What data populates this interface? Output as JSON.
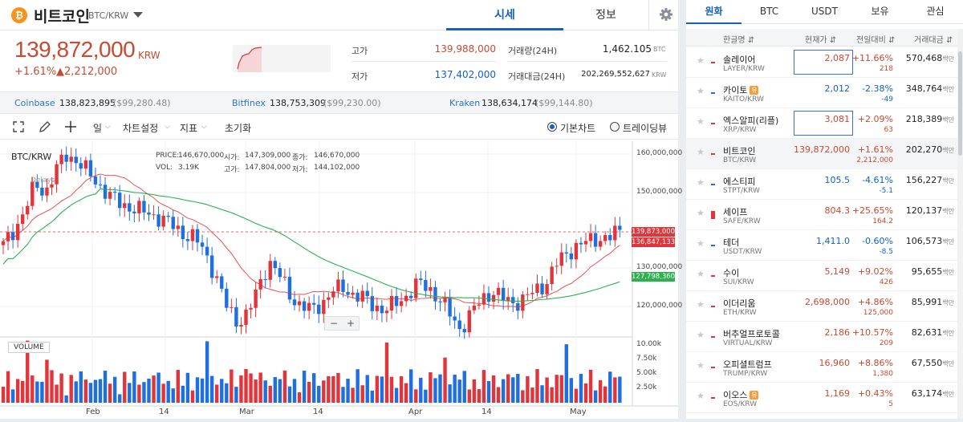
{
  "header": {
    "coin_symbol": "₿",
    "coin_name": "비트코인",
    "pair": "BTC/KRW",
    "tabs": [
      "시세",
      "정보"
    ]
  },
  "price": {
    "value": "139,872,000",
    "unit": "KRW",
    "change_rate": "+1.61%",
    "change_amount": "▲2,212,000",
    "high_label": "고가",
    "high": "139,988,000",
    "low_label": "저가",
    "low": "137,402,000",
    "volume_label": "거래량(24H)",
    "volume": "1,462.105",
    "volume_unit": "BTC",
    "amount_label": "거래대금(24H)",
    "amount": "202,269,552,627",
    "amount_unit": "KRW"
  },
  "exchanges": [
    {
      "name": "Coinbase",
      "value": "138,823,895",
      "usd": "($99,280.48)"
    },
    {
      "name": "Bitfinex",
      "value": "138,753,309",
      "usd": "($99,230.00)"
    },
    {
      "name": "Kraken",
      "value": "138,634,174",
      "usd": "($99,144.80)"
    }
  ],
  "toolbar": {
    "interval": "일",
    "chart_settings": "차트설정",
    "indicators": "지표",
    "reset": "초기화",
    "basic_chart": "기본차트",
    "tradingview": "트레이딩뷰"
  },
  "chart": {
    "symbol": "BTC/KRW",
    "overlay_label": "Delays",
    "ohlc": {
      "price_label": "PRICE:",
      "price": "146,670,000",
      "vol_label": "VOL:",
      "vol": "3.19K",
      "open_label": "시가:",
      "open": "147,309,000",
      "high_label": "고가:",
      "high": "147,804,000",
      "close_label": "종가:",
      "close": "146,670,000",
      "low_label": "저가:",
      "low": "144,102,000"
    },
    "volume_label": "VOLUME",
    "zoom_out": "−",
    "zoom_in": "+",
    "price_ticks": [
      "160,000,000",
      "150,000,000",
      "130,000,000",
      "120,000,000"
    ],
    "volume_ticks": [
      "10.00k",
      "7.50k",
      "5.00k",
      "2.50k"
    ],
    "x_ticks": [
      "Feb",
      "14",
      "Mar",
      "14",
      "Apr",
      "14",
      "May",
      "14"
    ],
    "price_badges": [
      {
        "value": "139,873,000",
        "color": "#e0353a"
      },
      {
        "value": "136,847,133",
        "color": "#e0353a"
      },
      {
        "value": "127,798,360",
        "color": "#2bb24c"
      }
    ],
    "colors": {
      "up": "#e0353a",
      "down": "#1e6fe0",
      "ma_short": "#e0353a",
      "ma_long": "#2bb24c"
    }
  },
  "chart_data": {
    "type": "candlestick",
    "x_range": [
      "Jan",
      "May"
    ],
    "y_range": [
      110000000,
      165000000
    ],
    "series": [
      {
        "name": "price",
        "values": [
          136,
          140,
          145,
          152,
          150,
          156,
          160,
          158,
          155,
          152,
          149,
          147,
          146,
          145,
          144,
          143,
          141,
          139,
          138,
          134,
          128,
          120,
          116,
          118,
          125,
          132,
          128,
          123,
          120,
          119,
          121,
          124,
          125,
          123,
          122,
          120,
          119,
          121,
          123,
          126,
          125,
          122,
          118,
          114,
          118,
          122,
          124,
          122,
          121,
          122,
          124,
          126,
          131,
          134,
          136,
          137,
          138,
          138,
          139.9
        ]
      }
    ]
  },
  "market": {
    "tabs": [
      "원화",
      "BTC",
      "USDT",
      "보유",
      "관심"
    ],
    "headers": {
      "name": "한글명 ⇵",
      "price": "현재가 ⇵",
      "change": "전일대비 ⇵",
      "volume": "거래대금 ⇵"
    },
    "volume_unit": "백만",
    "rows": [
      {
        "name": "솔레이어",
        "pair": "LAYER/KRW",
        "price": "2,087",
        "rate": "+11.66%",
        "amount": "218",
        "volume": "570,468",
        "dir": "up",
        "boxed": true,
        "badge": ""
      },
      {
        "name": "카이토",
        "pair": "KAITO/KRW",
        "price": "2,012",
        "rate": "-2.38%",
        "amount": "-49",
        "volume": "348,764",
        "dir": "dn",
        "boxed": false,
        "badge": "유"
      },
      {
        "name": "엑스알피(리플)",
        "pair": "XRP/KRW",
        "price": "3,081",
        "rate": "+2.09%",
        "amount": "63",
        "volume": "218,389",
        "dir": "up",
        "boxed": true,
        "badge": ""
      },
      {
        "name": "비트코인",
        "pair": "BTC/KRW",
        "price": "139,872,000",
        "rate": "+1.61%",
        "amount": "2,212,000",
        "volume": "202,270",
        "dir": "up",
        "boxed": false,
        "badge": "",
        "selected": true
      },
      {
        "name": "에스티피",
        "pair": "STPT/KRW",
        "price": "105.5",
        "rate": "-4.61%",
        "amount": "-5.1",
        "volume": "156,227",
        "dir": "dn",
        "boxed": false,
        "badge": ""
      },
      {
        "name": "세이프",
        "pair": "SAFE/KRW",
        "price": "804.3",
        "rate": "+25.65%",
        "amount": "164.2",
        "volume": "120,137",
        "dir": "up",
        "boxed": false,
        "badge": ""
      },
      {
        "name": "테더",
        "pair": "USDT/KRW",
        "price": "1,411.0",
        "rate": "-0.60%",
        "amount": "-8.5",
        "volume": "106,573",
        "dir": "dn",
        "boxed": false,
        "badge": ""
      },
      {
        "name": "수이",
        "pair": "SUI/KRW",
        "price": "5,149",
        "rate": "+9.02%",
        "amount": "426",
        "volume": "95,655",
        "dir": "up",
        "boxed": false,
        "badge": ""
      },
      {
        "name": "이더리움",
        "pair": "ETH/KRW",
        "price": "2,698,000",
        "rate": "+4.86%",
        "amount": "125,000",
        "volume": "85,991",
        "dir": "up",
        "boxed": false,
        "badge": ""
      },
      {
        "name": "버추얼프로토콜",
        "pair": "VIRTUAL/KRW",
        "price": "2,186",
        "rate": "+10.57%",
        "amount": "209",
        "volume": "82,631",
        "dir": "up",
        "boxed": false,
        "badge": ""
      },
      {
        "name": "오피셜트럼프",
        "pair": "TRUMP/KRW",
        "price": "16,960",
        "rate": "+8.86%",
        "amount": "1,380",
        "volume": "67,550",
        "dir": "up",
        "boxed": false,
        "badge": ""
      },
      {
        "name": "이오스",
        "pair": "EOS/KRW",
        "price": "1,169",
        "rate": "+0.43%",
        "amount": "5",
        "volume": "63,174",
        "dir": "up",
        "boxed": false,
        "badge": "유"
      }
    ]
  }
}
